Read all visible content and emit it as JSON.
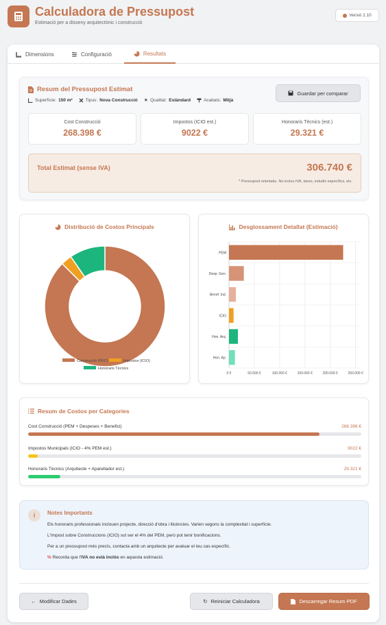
{
  "app": {
    "title": "Calculadora de Pressupost",
    "subtitle": "Estimació per a disseny arquitectònic i construcció",
    "version": "Versió 2.10",
    "accent_color": "#c47752"
  },
  "tabs": [
    {
      "label": "Dimensions",
      "icon": "ruler-icon",
      "active": false
    },
    {
      "label": "Configuració",
      "icon": "sliders-icon",
      "active": false
    },
    {
      "label": "Resultats",
      "icon": "pie-chart-icon",
      "active": true
    }
  ],
  "summary": {
    "title": "Resum del Pressupost Estimat",
    "meta": [
      {
        "label": "Superfície:",
        "value": "150 m²",
        "icon": "ruler-icon"
      },
      {
        "label": "Tipus:",
        "value": "Nova Construcció",
        "icon": "tools-icon"
      },
      {
        "label": "Qualitat:",
        "value": "Estàndard",
        "icon": "star-icon"
      },
      {
        "label": "Acabats:",
        "value": "Mitjà",
        "icon": "paint-roller-icon"
      }
    ],
    "save_label": "Guardar per comparar",
    "stats": [
      {
        "label": "Cost Construcció",
        "value": "268.398 €"
      },
      {
        "label": "Impostos (ICIO est.)",
        "value": "9022 €"
      },
      {
        "label": "Honoraris Tècnics (est.)",
        "value": "29.321 €"
      }
    ],
    "total_label": "Total Estimat (sense IVA)",
    "total_value": "306.740 €",
    "total_note": "* Pressupost orientatiu. No inclou IVA, taxes, estudis específics, etc."
  },
  "donut": {
    "title": "Distribució de Costos Principals",
    "chart_data": {
      "type": "pie",
      "categories": [
        "Construcció (PEC)",
        "Impostos (ICIO)",
        "Honoraris Tècnics"
      ],
      "values": [
        268398,
        9022,
        29321
      ],
      "colors": [
        "#c47752",
        "#f0a020",
        "#1db57e"
      ],
      "legend": "bottom"
    }
  },
  "bars": {
    "title": "Desglossament Detallat (Estimació)",
    "chart_data": {
      "type": "bar",
      "orientation": "horizontal",
      "categories": [
        "PEM",
        "Desp. Gen.",
        "Benef. Ind.",
        "ICIO",
        "Hon. Arq.",
        "Hon. Ap."
      ],
      "values": [
        225500,
        29300,
        13500,
        9022,
        17600,
        11700
      ],
      "colors": [
        "#c47752",
        "#d69378",
        "#e6b19c",
        "#f0a020",
        "#1db57e",
        "#72e0b8"
      ],
      "xlim": [
        0,
        260000
      ],
      "xticks": [
        "0 €",
        "50.000 €",
        "100.000 €",
        "150.000 €",
        "200.000 €",
        "250.000 €"
      ],
      "xtick_values": [
        0,
        50000,
        100000,
        150000,
        200000,
        250000
      ],
      "grid": true
    }
  },
  "categories": {
    "title": "Resum de Costos per Categories",
    "rows": [
      {
        "label": "Cost Construcció (PEM + Despeses + Benefici)",
        "value": "268.398 €",
        "fraction": 0.875,
        "color": "#c47752"
      },
      {
        "label": "Impostos Municipals (ICIO - 4% PEM est.)",
        "value": "9022 €",
        "fraction": 0.029,
        "color": "#f5c518"
      },
      {
        "label": "Honoraris Tècnics (Arquitecte + Aparellador est.)",
        "value": "29.321 €",
        "fraction": 0.096,
        "color": "#2ecc71"
      }
    ]
  },
  "notes": {
    "title": "Notes Importants",
    "lines": [
      "Els honoraris professionals inclouen projecte, direcció d'obra i llicències. Varien segons la complexitat i superfície.",
      "L'Impost sobre Construccions (ICIO) sol ser el 4% del PEM, però pot tenir bonificacions.",
      "Per a un pressupost més precís, contacta amb un arquitecte per avaluar el teu cas específic."
    ],
    "warn_pre": "Recorda que l'",
    "warn_bold": "IVA no està inclòs",
    "warn_post": " en aquesta estimació."
  },
  "actions": {
    "modify": "Modificar Dades",
    "reset": "Reiniciar Calculadora",
    "download": "Descarregar Resum PDF"
  }
}
